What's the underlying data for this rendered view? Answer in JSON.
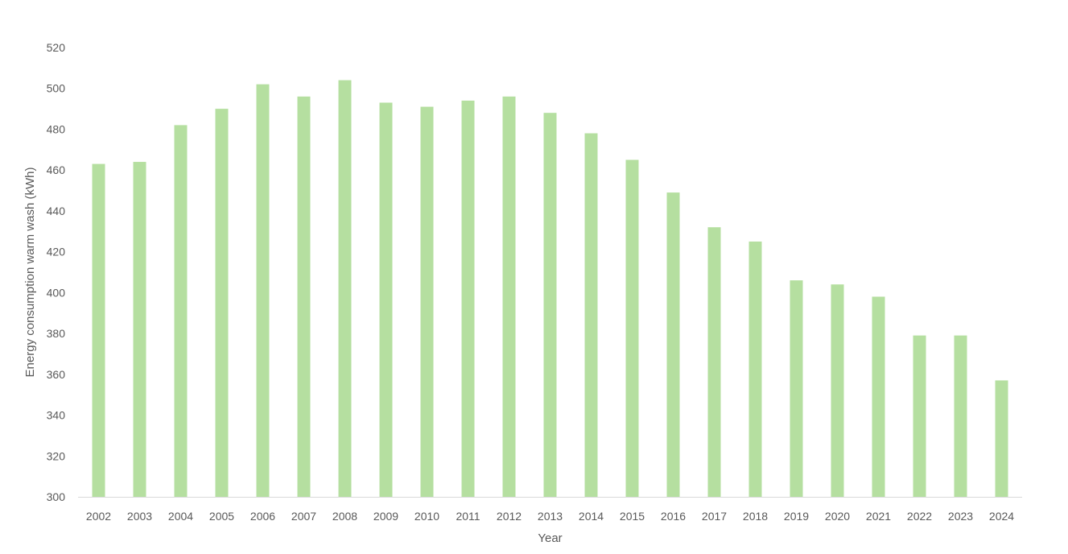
{
  "chart_data": {
    "type": "bar",
    "title": "",
    "xlabel": "Year",
    "ylabel": "Energy consumption warm wash (kWh)",
    "categories": [
      "2002",
      "2003",
      "2004",
      "2005",
      "2006",
      "2007",
      "2008",
      "2009",
      "2010",
      "2011",
      "2012",
      "2013",
      "2014",
      "2015",
      "2016",
      "2017",
      "2018",
      "2019",
      "2020",
      "2021",
      "2022",
      "2023",
      "2024"
    ],
    "values": [
      463,
      464,
      482,
      490,
      502,
      496,
      504,
      493,
      491,
      494,
      496,
      488,
      478,
      465,
      449,
      432,
      425,
      406,
      404,
      398,
      379,
      379,
      357
    ],
    "ylim": [
      300,
      520
    ],
    "yticks": [
      300,
      320,
      340,
      360,
      380,
      400,
      420,
      440,
      460,
      480,
      500,
      520
    ],
    "grid": false,
    "legend": "none",
    "colors": {
      "bar": "#b5dfa0",
      "axis_line": "#d9d9d9",
      "text": "#595959"
    }
  }
}
